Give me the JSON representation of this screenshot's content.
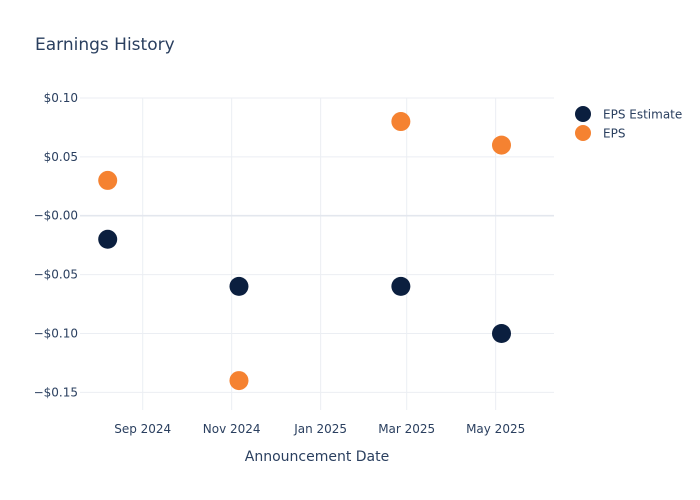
{
  "chart_data": {
    "type": "scatter",
    "title": "Earnings History",
    "xlabel": "Announcement Date",
    "ylabel": "",
    "x_type": "date",
    "xlim": [
      "2024-07-20",
      "2025-06-10"
    ],
    "ylim": [
      -0.165,
      0.1
    ],
    "x_ticks": [
      {
        "date": "2024-09-01",
        "label": "Sep 2024"
      },
      {
        "date": "2024-11-01",
        "label": "Nov 2024"
      },
      {
        "date": "2025-01-01",
        "label": "Jan 2025"
      },
      {
        "date": "2025-03-01",
        "label": "Mar 2025"
      },
      {
        "date": "2025-05-01",
        "label": "May 2025"
      }
    ],
    "y_ticks": [
      {
        "value": 0.1,
        "label": "$0.10"
      },
      {
        "value": 0.05,
        "label": "$0.05"
      },
      {
        "value": 0.0,
        "label": "−$0.00"
      },
      {
        "value": -0.05,
        "label": "−$0.05"
      },
      {
        "value": -0.1,
        "label": "−$0.10"
      },
      {
        "value": -0.15,
        "label": "−$0.15"
      }
    ],
    "grid": true,
    "legend_position": "top-right",
    "series": [
      {
        "name": "EPS Estimate",
        "color": "#0b1f3f",
        "x": [
          "2024-08-08",
          "2024-11-06",
          "2025-02-25",
          "2025-05-05"
        ],
        "y": [
          -0.02,
          -0.06,
          -0.06,
          -0.1
        ]
      },
      {
        "name": "EPS",
        "color": "#f58231",
        "x": [
          "2024-08-08",
          "2024-11-06",
          "2025-02-25",
          "2025-05-05"
        ],
        "y": [
          0.03,
          -0.14,
          0.08,
          0.06
        ]
      }
    ]
  }
}
